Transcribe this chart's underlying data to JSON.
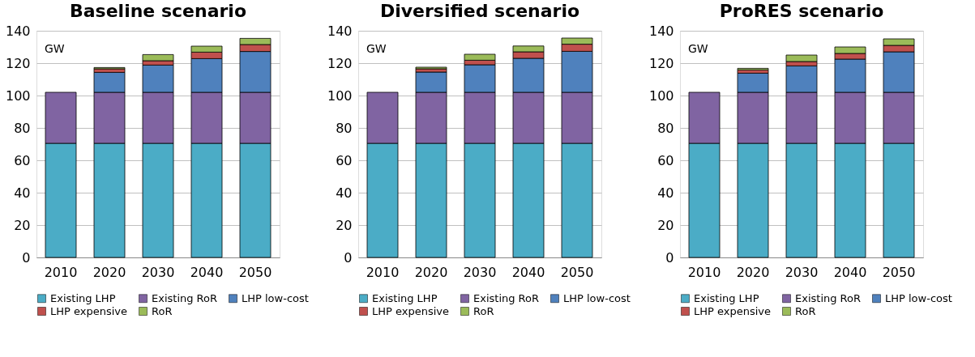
{
  "chart_data": [
    {
      "type": "bar",
      "stacked": true,
      "title": "Baseline scenario",
      "annotations": [
        "GW"
      ],
      "categories": [
        "2010",
        "2020",
        "2030",
        "2040",
        "2050"
      ],
      "ylim": [
        0,
        140
      ],
      "yticks": [
        0,
        20,
        40,
        60,
        80,
        100,
        120,
        140
      ],
      "grid": "y",
      "legend": "bottom",
      "series": [
        {
          "name": "Existing LHP",
          "color": "#4bacc6",
          "values": [
            70.5,
            70.5,
            70.5,
            70.5,
            70.5
          ]
        },
        {
          "name": "Existing RoR",
          "color": "#8064a2",
          "values": [
            31.5,
            31.5,
            31.5,
            31.5,
            31.5
          ]
        },
        {
          "name": "LHP low-cost",
          "color": "#4f81bd",
          "values": [
            null,
            12.3,
            16.8,
            20.8,
            25.2
          ]
        },
        {
          "name": "LHP expensive",
          "color": "#c0504d",
          "values": [
            null,
            2.2,
            2.7,
            4.0,
            4.3
          ]
        },
        {
          "name": "RoR",
          "color": "#9bbb59",
          "values": [
            null,
            0.8,
            3.8,
            3.7,
            3.8
          ]
        }
      ]
    },
    {
      "type": "bar",
      "stacked": true,
      "title": "Diversified scenario",
      "annotations": [
        "GW"
      ],
      "categories": [
        "2010",
        "2020",
        "2030",
        "2040",
        "2050"
      ],
      "ylim": [
        0,
        140
      ],
      "yticks": [
        0,
        20,
        40,
        60,
        80,
        100,
        120,
        140
      ],
      "grid": "y",
      "legend": "bottom",
      "series": [
        {
          "name": "Existing LHP",
          "color": "#4bacc6",
          "values": [
            70.5,
            70.5,
            70.5,
            70.5,
            70.5
          ]
        },
        {
          "name": "Existing RoR",
          "color": "#8064a2",
          "values": [
            31.5,
            31.5,
            31.5,
            31.5,
            31.5
          ]
        },
        {
          "name": "LHP low-cost",
          "color": "#4f81bd",
          "values": [
            null,
            12.5,
            17.0,
            21.0,
            25.3
          ]
        },
        {
          "name": "LHP expensive",
          "color": "#c0504d",
          "values": [
            null,
            2.0,
            2.8,
            4.0,
            4.4
          ]
        },
        {
          "name": "RoR",
          "color": "#9bbb59",
          "values": [
            null,
            1.0,
            3.7,
            3.6,
            3.8
          ]
        }
      ]
    },
    {
      "type": "bar",
      "stacked": true,
      "title": "ProRES scenario",
      "annotations": [
        "GW"
      ],
      "categories": [
        "2010",
        "2020",
        "2030",
        "2040",
        "2050"
      ],
      "ylim": [
        0,
        140
      ],
      "yticks": [
        0,
        20,
        40,
        60,
        80,
        100,
        120,
        140
      ],
      "grid": "y",
      "legend": "bottom",
      "series": [
        {
          "name": "Existing LHP",
          "color": "#4bacc6",
          "values": [
            70.5,
            70.5,
            70.5,
            70.5,
            70.5
          ]
        },
        {
          "name": "Existing RoR",
          "color": "#8064a2",
          "values": [
            31.5,
            31.5,
            31.5,
            31.5,
            31.5
          ]
        },
        {
          "name": "LHP low-cost",
          "color": "#4f81bd",
          "values": [
            null,
            11.8,
            16.3,
            20.5,
            25.0
          ]
        },
        {
          "name": "LHP expensive",
          "color": "#c0504d",
          "values": [
            null,
            2.0,
            2.7,
            3.5,
            4.0
          ]
        },
        {
          "name": "RoR",
          "color": "#9bbb59",
          "values": [
            null,
            1.0,
            4.0,
            4.0,
            4.0
          ]
        }
      ]
    }
  ]
}
